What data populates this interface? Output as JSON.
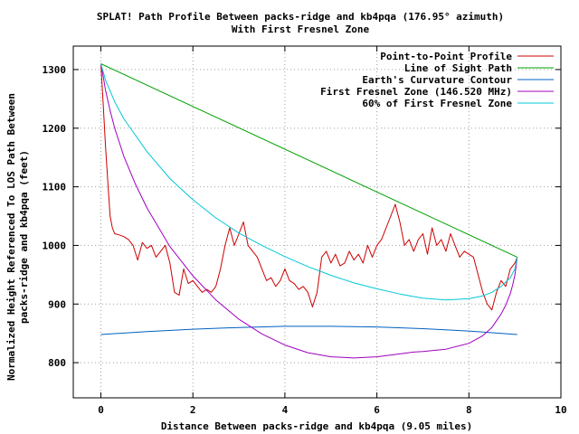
{
  "chart_data": {
    "type": "line",
    "title": "SPLAT! Path Profile Between packs-ridge and kb4pqa (176.95° azimuth)",
    "subtitle": "With First Fresnel Zone",
    "xlabel": "Distance Between packs-ridge and kb4pqa (9.05 miles)",
    "ylabel_line1": "Normalized Height Referenced To LOS Path Between",
    "ylabel_line2": "packs-ridge and kb4pqa (feet)",
    "xlim": [
      -0.6,
      10
    ],
    "ylim": [
      740,
      1340
    ],
    "x_ticks": [
      0,
      2,
      4,
      6,
      8,
      10
    ],
    "y_ticks": [
      800,
      900,
      1000,
      1100,
      1200,
      1300
    ],
    "grid": true,
    "legend_position": "top-right",
    "series": [
      {
        "name": "Point-to-Point Profile",
        "color": "#cc0000",
        "x": [
          0,
          0.05,
          0.1,
          0.15,
          0.2,
          0.25,
          0.3,
          0.4,
          0.5,
          0.6,
          0.7,
          0.8,
          0.9,
          1.0,
          1.1,
          1.2,
          1.3,
          1.4,
          1.5,
          1.6,
          1.7,
          1.8,
          1.9,
          2.0,
          2.1,
          2.2,
          2.3,
          2.4,
          2.5,
          2.6,
          2.7,
          2.8,
          2.9,
          3.0,
          3.1,
          3.2,
          3.3,
          3.4,
          3.5,
          3.6,
          3.7,
          3.8,
          3.9,
          4.0,
          4.1,
          4.2,
          4.3,
          4.4,
          4.5,
          4.6,
          4.7,
          4.8,
          4.9,
          5.0,
          5.1,
          5.2,
          5.3,
          5.4,
          5.5,
          5.6,
          5.7,
          5.8,
          5.9,
          6.0,
          6.1,
          6.2,
          6.3,
          6.4,
          6.5,
          6.6,
          6.7,
          6.8,
          6.9,
          7.0,
          7.1,
          7.2,
          7.3,
          7.4,
          7.5,
          7.6,
          7.7,
          7.8,
          7.9,
          8.0,
          8.1,
          8.2,
          8.3,
          8.4,
          8.5,
          8.6,
          8.7,
          8.8,
          8.9,
          9.0,
          9.05
        ],
        "y": [
          1310,
          1240,
          1170,
          1110,
          1050,
          1030,
          1020,
          1018,
          1015,
          1010,
          1000,
          975,
          1005,
          995,
          1000,
          980,
          990,
          1000,
          970,
          920,
          915,
          960,
          935,
          940,
          930,
          920,
          925,
          920,
          930,
          960,
          1000,
          1030,
          1000,
          1020,
          1040,
          1000,
          990,
          980,
          960,
          940,
          945,
          930,
          940,
          960,
          940,
          935,
          925,
          930,
          920,
          895,
          920,
          980,
          990,
          970,
          985,
          965,
          970,
          990,
          975,
          985,
          970,
          1000,
          980,
          1000,
          1010,
          1030,
          1050,
          1070,
          1040,
          1000,
          1010,
          990,
          1010,
          1020,
          985,
          1030,
          1000,
          1010,
          990,
          1020,
          1000,
          980,
          990,
          985,
          980,
          950,
          920,
          900,
          890,
          920,
          940,
          930,
          960,
          970,
          980
        ],
        "line_style": "solid"
      },
      {
        "name": "Line of Sight Path",
        "color": "#00a000",
        "x": [
          0,
          9.05
        ],
        "y": [
          1310,
          980
        ],
        "line_style": "solid"
      },
      {
        "name": "Earth's Curvature Contour",
        "color": "#0060c0",
        "x": [
          0,
          1,
          2,
          3,
          4,
          4.525,
          5,
          6,
          7,
          8,
          9.05
        ],
        "y": [
          848,
          853,
          857,
          860,
          862,
          862,
          862,
          861,
          858,
          854,
          848
        ],
        "line_style": "solid"
      },
      {
        "name": "First Fresnel Zone (146.520 MHz)",
        "color": "#a000c0",
        "x": [
          0,
          0.05,
          0.1,
          0.2,
          0.3,
          0.5,
          0.75,
          1.0,
          1.5,
          2.0,
          2.5,
          3.0,
          3.5,
          4.0,
          4.5,
          5.0,
          5.5,
          6.0,
          6.5,
          6.8,
          7.0,
          7.5,
          8.0,
          8.3,
          8.5,
          8.7,
          8.8,
          8.9,
          8.95,
          9.0,
          9.05
        ],
        "y": [
          1310,
          1288,
          1265,
          1230,
          1200,
          1152,
          1105,
          1064,
          998,
          948,
          907,
          874,
          849,
          830,
          817,
          810,
          808,
          810,
          815,
          818,
          819,
          823,
          833,
          846,
          860,
          883,
          898,
          918,
          932,
          950,
          980
        ],
        "line_style": "solid"
      },
      {
        "name": "60% of First Fresnel Zone",
        "color": "#00c8d8",
        "x": [
          0,
          0.05,
          0.1,
          0.3,
          0.5,
          1.0,
          1.5,
          2.0,
          2.5,
          3.0,
          3.5,
          4.0,
          4.5,
          5.0,
          5.5,
          6.0,
          6.5,
          7.0,
          7.5,
          8.0,
          8.3,
          8.5,
          8.7,
          8.9,
          9.0,
          9.05
        ],
        "y": [
          1310,
          1296,
          1282,
          1245,
          1216,
          1160,
          1114,
          1078,
          1047,
          1021,
          1000,
          981,
          964,
          949,
          936,
          926,
          917,
          910,
          907,
          909,
          914,
          920,
          930,
          945,
          960,
          980
        ],
        "line_style": "solid"
      }
    ]
  }
}
